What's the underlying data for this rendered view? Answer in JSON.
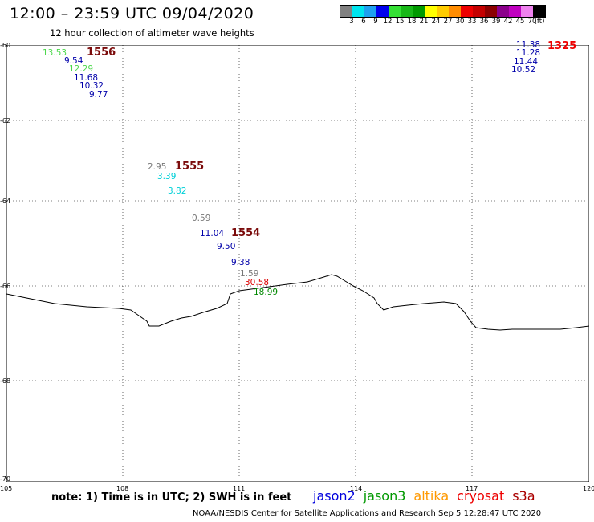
{
  "header": {
    "title": "12:00 – 23:59 UTC 09/04/2020",
    "subtitle": "12 hour collection of altimeter wave heights"
  },
  "colorbar": {
    "colors": [
      "#808080",
      "#00e5ee",
      "#1ea0f0",
      "#0000ee",
      "#35e035",
      "#18b818",
      "#009a00",
      "#ffff00",
      "#ffcc00",
      "#ff8c00",
      "#ee0000",
      "#c40000",
      "#8b0000",
      "#8b008b",
      "#c000c0",
      "#ee82ee",
      "#000000"
    ],
    "labels": [
      "3",
      "6",
      "9",
      "12",
      "15",
      "18",
      "21",
      "24",
      "27",
      "30",
      "33",
      "36",
      "39",
      "42",
      "45",
      "70",
      "(ft)"
    ]
  },
  "map": {
    "lon_labels": [
      "105",
      "108",
      "111",
      "114",
      "117",
      "120"
    ],
    "lat_labels": [
      "-60",
      "-62",
      "-64",
      "-66",
      "-68",
      "-70"
    ],
    "coastline": "antarctic coastline",
    "track_labels": [
      {
        "id": "1556",
        "color": "#7b0b0b"
      },
      {
        "id": "1555",
        "color": "#7b0b0b"
      },
      {
        "id": "1554",
        "color": "#7b0b0b"
      },
      {
        "id": "1325",
        "color": "#ee0000"
      }
    ],
    "readings": [
      {
        "v": "13.53",
        "c": "#4dd84d"
      },
      {
        "v": "9.54",
        "c": "#0000aa"
      },
      {
        "v": "12.29",
        "c": "#4dd84d"
      },
      {
        "v": "11.68",
        "c": "#0000aa"
      },
      {
        "v": "10.32",
        "c": "#0000aa"
      },
      {
        "v": "9.77",
        "c": "#0000aa"
      },
      {
        "v": "2.95",
        "c": "#777777"
      },
      {
        "v": "3.39",
        "c": "#00d0d8"
      },
      {
        "v": "3.82",
        "c": "#00d0d8"
      },
      {
        "v": "0.59",
        "c": "#777777"
      },
      {
        "v": "11.04",
        "c": "#0000aa"
      },
      {
        "v": "9.50",
        "c": "#0000aa"
      },
      {
        "v": "9.38",
        "c": "#0000aa"
      },
      {
        "v": "1.59",
        "c": "#777777"
      },
      {
        "v": "30.58",
        "c": "#dd0000"
      },
      {
        "v": "18.99",
        "c": "#008800"
      },
      {
        "v": "11.38",
        "c": "#0000aa"
      },
      {
        "v": "11.28",
        "c": "#0000aa"
      },
      {
        "v": "11.44",
        "c": "#0000aa"
      },
      {
        "v": "10.52",
        "c": "#0000aa"
      }
    ]
  },
  "footer": {
    "note": "note: 1) Time is in UTC; 2) SWH is in feet",
    "satellites": [
      {
        "name": "jason2",
        "color": "#0000dd"
      },
      {
        "name": "jason3",
        "color": "#009900"
      },
      {
        "name": "altika",
        "color": "#ff9900"
      },
      {
        "name": "cryosat",
        "color": "#ee0000"
      },
      {
        "name": "s3a",
        "color": "#aa0000"
      }
    ],
    "credit": "NOAA/NESDIS Center for Satellite Applications and Research    Sep  5 12:28:47 UTC 2020"
  }
}
